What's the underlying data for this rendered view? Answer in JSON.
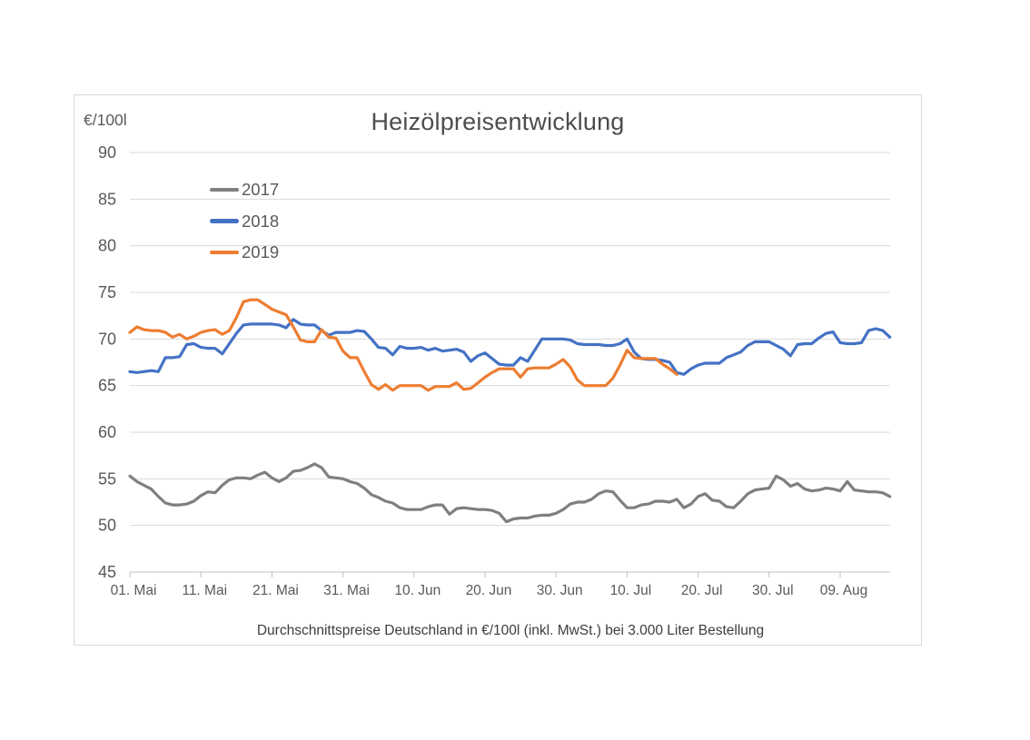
{
  "chart": {
    "title": "Heizölpreisentwicklung",
    "unit_label": "€/100l",
    "caption": "Durchschnittspreise Deutschland in €/100l (inkl. MwSt.) bei 3.000 Liter Bestellung",
    "colors": {
      "title_text": "#4d4d4d",
      "axis_text": "#595959",
      "caption_text": "#3d3d3d",
      "gridline": "#d9d9d9",
      "axis_line": "#bfbfbf",
      "panel_border": "#d9d9d9"
    }
  },
  "chart_data": {
    "type": "line",
    "title": "Heizölpreisentwicklung",
    "ylabel": "€/100l",
    "ylim": [
      45,
      90
    ],
    "y_tick_labels": [
      "90",
      "85",
      "80",
      "75",
      "70",
      "65",
      "60",
      "55",
      "50",
      "45"
    ],
    "x_tick_labels": [
      "01. Mai",
      "11. Mai",
      "21. Mai",
      "31. Mai",
      "10. Jun",
      "20. Jun",
      "30. Jun",
      "10. Jul",
      "20. Jul",
      "30. Jul",
      "09. Aug"
    ],
    "x_tick_days": [
      0,
      10,
      20,
      30,
      40,
      50,
      60,
      70,
      80,
      90,
      100
    ],
    "x_max_day": 107,
    "grid": "horizontal-only",
    "legend_position": "inside-top-left",
    "series": [
      {
        "name": "2017",
        "color": "#7f7f7f",
        "start_day": 0,
        "values": [
          55.3,
          54.7,
          54.3,
          53.9,
          53.1,
          52.4,
          52.2,
          52.2,
          52.3,
          52.6,
          53.2,
          53.6,
          53.5,
          54.3,
          54.9,
          55.1,
          55.1,
          55.0,
          55.4,
          55.7,
          55.1,
          54.7,
          55.1,
          55.8,
          55.9,
          56.2,
          56.6,
          56.2,
          55.2,
          55.1,
          55.0,
          54.7,
          54.5,
          54.0,
          53.3,
          53.0,
          52.6,
          52.4,
          51.9,
          51.7,
          51.7,
          51.7,
          52.0,
          52.2,
          52.2,
          51.2,
          51.8,
          51.9,
          51.8,
          51.7,
          51.7,
          51.6,
          51.3,
          50.4,
          50.7,
          50.8,
          50.8,
          51.0,
          51.1,
          51.1,
          51.3,
          51.7,
          52.3,
          52.5,
          52.5,
          52.8,
          53.4,
          53.7,
          53.6,
          52.7,
          51.9,
          51.9,
          52.2,
          52.3,
          52.6,
          52.6,
          52.5,
          52.8,
          51.9,
          52.3,
          53.1,
          53.4,
          52.7,
          52.6,
          52.0,
          51.9,
          52.6,
          53.4,
          53.8,
          53.9,
          54.0,
          55.3,
          54.9,
          54.2,
          54.5,
          53.9,
          53.7,
          53.8,
          54.0,
          53.9,
          53.7,
          54.7,
          53.8,
          53.7,
          53.6,
          53.6,
          53.5,
          53.1
        ]
      },
      {
        "name": "2018",
        "color": "#4472c4",
        "start_day": 0,
        "values": [
          66.5,
          66.4,
          66.5,
          66.6,
          66.5,
          68.0,
          68.0,
          68.1,
          69.4,
          69.5,
          69.1,
          69.0,
          69.0,
          68.4,
          69.5,
          70.6,
          71.5,
          71.6,
          71.6,
          71.6,
          71.6,
          71.5,
          71.2,
          72.1,
          71.6,
          71.5,
          71.5,
          70.9,
          70.4,
          70.7,
          70.7,
          70.7,
          70.9,
          70.8,
          70.0,
          69.1,
          69.0,
          68.3,
          69.2,
          69.0,
          69.0,
          69.1,
          68.8,
          69.0,
          68.7,
          68.8,
          68.9,
          68.6,
          67.6,
          68.2,
          68.5,
          67.9,
          67.3,
          67.2,
          67.2,
          68.0,
          67.6,
          68.8,
          70.0,
          70.0,
          70.0,
          70.0,
          69.9,
          69.5,
          69.4,
          69.4,
          69.4,
          69.3,
          69.3,
          69.5,
          70.0,
          68.6,
          67.9,
          67.8,
          67.8,
          67.7,
          67.5,
          66.4,
          66.2,
          66.8,
          67.2,
          67.4,
          67.4,
          67.4,
          68.0,
          68.3,
          68.6,
          69.3,
          69.7,
          69.7,
          69.7,
          69.3,
          68.9,
          68.2,
          69.4,
          69.5,
          69.5,
          70.1,
          70.6,
          70.75,
          69.6,
          69.5,
          69.5,
          69.6,
          70.9,
          71.1,
          70.9,
          70.2
        ]
      },
      {
        "name": "2019",
        "color": "#ed7d31",
        "start_day": 0,
        "values": [
          70.7,
          71.3,
          71.0,
          70.9,
          70.9,
          70.7,
          70.2,
          70.5,
          70.0,
          70.3,
          70.7,
          70.9,
          71.0,
          70.5,
          70.9,
          72.3,
          74.0,
          74.2,
          74.2,
          73.7,
          73.2,
          72.9,
          72.6,
          71.3,
          69.9,
          69.7,
          69.7,
          71.0,
          70.2,
          70.1,
          68.7,
          68.0,
          68.0,
          66.5,
          65.1,
          64.6,
          65.1,
          64.5,
          65.0,
          65.0,
          65.0,
          65.0,
          64.5,
          64.9,
          64.9,
          64.9,
          65.3,
          64.6,
          64.7,
          65.3,
          65.9,
          66.4,
          66.8,
          66.8,
          66.8,
          65.9,
          66.8,
          66.9,
          66.9,
          66.9,
          67.3,
          67.8,
          67.0,
          65.6,
          65.0,
          65.0,
          65.0,
          65.0,
          65.8,
          67.2,
          68.8,
          68.0,
          67.9,
          67.9,
          67.9,
          67.3,
          66.8,
          66.2
        ]
      }
    ]
  }
}
